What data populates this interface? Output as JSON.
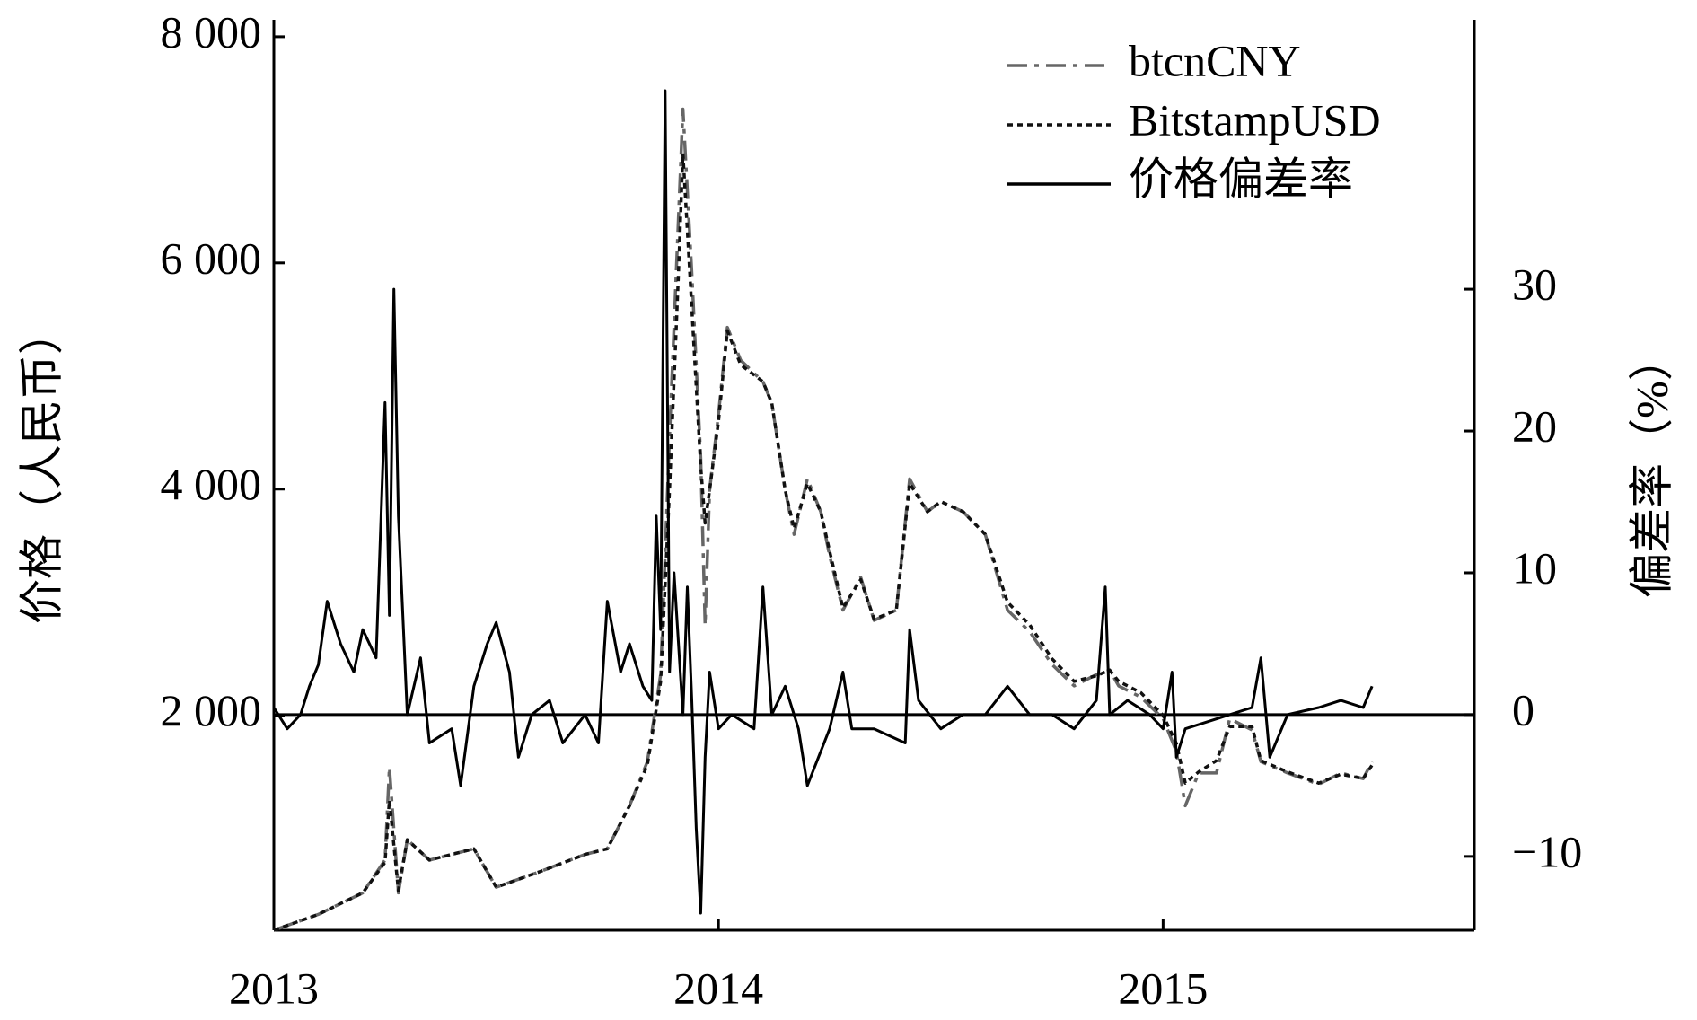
{
  "chart_data": {
    "type": "line",
    "xlabel": null,
    "ylabel": "价格（人民币）",
    "y2label": "偏差率（%）",
    "xlim": [
      2013,
      2015.7
    ],
    "xticks": [
      2013,
      2014,
      2015
    ],
    "ylim": [
      100,
      8150
    ],
    "yticks": [
      {
        "value": 2000,
        "label": "2 000"
      },
      {
        "value": 4000,
        "label": "4 000"
      },
      {
        "value": 6000,
        "label": "6 000"
      },
      {
        "value": 8000,
        "label": "8 000"
      }
    ],
    "y2lim": [
      -15.2,
      49
    ],
    "y2ticks": [
      {
        "value": -10,
        "label": "−10"
      },
      0,
      10,
      20,
      30
    ],
    "legend": "upper right",
    "series": [
      {
        "name": "btcnCNY",
        "color": "#666666",
        "style": "dashdot",
        "axis": "y",
        "x": [
          2013.0,
          2013.1,
          2013.2,
          2013.25,
          2013.26,
          2013.28,
          2013.3,
          2013.35,
          2013.45,
          2013.5,
          2013.6,
          2013.7,
          2013.75,
          2013.8,
          2013.84,
          2013.87,
          2013.89,
          2013.91,
          2013.92,
          2013.94,
          2013.96,
          2013.97,
          2013.98,
          2014.0,
          2014.02,
          2014.05,
          2014.1,
          2014.12,
          2014.15,
          2014.17,
          2014.2,
          2014.23,
          2014.25,
          2014.28,
          2014.32,
          2014.35,
          2014.4,
          2014.43,
          2014.47,
          2014.5,
          2014.55,
          2014.6,
          2014.65,
          2014.7,
          2014.75,
          2014.8,
          2014.85,
          2014.88,
          2014.9,
          2014.95,
          2015.0,
          2015.03,
          2015.05,
          2015.08,
          2015.12,
          2015.15,
          2015.2,
          2015.22,
          2015.28,
          2015.35,
          2015.4,
          2015.45,
          2015.47
        ],
        "values": [
          100,
          240,
          430,
          720,
          1540,
          430,
          900,
          720,
          820,
          480,
          620,
          770,
          820,
          1200,
          1590,
          2360,
          4470,
          6390,
          7360,
          5910,
          4280,
          2800,
          3990,
          4660,
          5430,
          5140,
          4950,
          4760,
          3990,
          3600,
          4090,
          3800,
          3410,
          2930,
          3220,
          2840,
          2930,
          4090,
          3800,
          3890,
          3800,
          3600,
          2930,
          2740,
          2450,
          2260,
          2360,
          2400,
          2260,
          2160,
          1970,
          1680,
          1200,
          1490,
          1490,
          1970,
          1870,
          1590,
          1490,
          1390,
          1490,
          1440,
          1590
        ]
      },
      {
        "name": "BitstampUSD",
        "color": "#111111",
        "style": "dotted",
        "axis": "y",
        "x": [
          2013.0,
          2013.1,
          2013.2,
          2013.25,
          2013.26,
          2013.28,
          2013.3,
          2013.35,
          2013.45,
          2013.5,
          2013.6,
          2013.7,
          2013.75,
          2013.8,
          2013.84,
          2013.87,
          2013.89,
          2013.91,
          2013.92,
          2013.94,
          2013.96,
          2013.97,
          2013.98,
          2014.0,
          2014.02,
          2014.05,
          2014.1,
          2014.12,
          2014.15,
          2014.17,
          2014.2,
          2014.23,
          2014.25,
          2014.28,
          2014.32,
          2014.35,
          2014.4,
          2014.43,
          2014.47,
          2014.5,
          2014.55,
          2014.6,
          2014.65,
          2014.7,
          2014.75,
          2014.8,
          2014.85,
          2014.88,
          2014.9,
          2014.95,
          2015.0,
          2015.03,
          2015.05,
          2015.08,
          2015.12,
          2015.15,
          2015.2,
          2015.22,
          2015.28,
          2015.35,
          2015.4,
          2015.45,
          2015.47
        ],
        "values": [
          100,
          240,
          430,
          700,
          1250,
          450,
          900,
          720,
          820,
          480,
          620,
          770,
          820,
          1200,
          1560,
          2300,
          4000,
          5900,
          6970,
          5600,
          4200,
          3700,
          3990,
          4600,
          5400,
          5100,
          4950,
          4760,
          3990,
          3650,
          4050,
          3800,
          3450,
          2950,
          3200,
          2850,
          2930,
          4050,
          3800,
          3890,
          3800,
          3600,
          3000,
          2800,
          2500,
          2300,
          2350,
          2400,
          2300,
          2200,
          2000,
          1750,
          1400,
          1500,
          1600,
          1900,
          1900,
          1600,
          1500,
          1400,
          1480,
          1440,
          1560
        ]
      },
      {
        "name": "价格偏差率",
        "color": "#000000",
        "style": "solid",
        "axis": "y2",
        "x": [
          2013.0,
          2013.03,
          2013.06,
          2013.08,
          2013.1,
          2013.12,
          2013.15,
          2013.18,
          2013.2,
          2013.23,
          2013.25,
          2013.26,
          2013.27,
          2013.28,
          2013.3,
          2013.33,
          2013.35,
          2013.4,
          2013.42,
          2013.45,
          2013.48,
          2013.5,
          2013.53,
          2013.55,
          2013.58,
          2013.62,
          2013.65,
          2013.7,
          2013.73,
          2013.75,
          2013.78,
          2013.8,
          2013.83,
          2013.85,
          2013.86,
          2013.87,
          2013.88,
          2013.89,
          2013.9,
          2013.92,
          2013.93,
          2013.94,
          2013.95,
          2013.96,
          2013.97,
          2013.98,
          2014.0,
          2014.03,
          2014.08,
          2014.1,
          2014.12,
          2014.15,
          2014.18,
          2014.2,
          2014.25,
          2014.28,
          2014.3,
          2014.35,
          2014.42,
          2014.43,
          2014.45,
          2014.5,
          2014.55,
          2014.6,
          2014.65,
          2014.7,
          2014.75,
          2014.8,
          2014.85,
          2014.87,
          2014.88,
          2014.92,
          2014.97,
          2015.0,
          2015.02,
          2015.03,
          2015.05,
          2015.1,
          2015.15,
          2015.2,
          2015.22,
          2015.24,
          2015.28,
          2015.35,
          2015.4,
          2015.45,
          2015.47
        ],
        "values": [
          0.5,
          -1,
          0,
          2,
          3.5,
          8,
          5,
          3,
          6,
          4,
          22,
          7,
          30,
          14,
          0,
          4,
          -2,
          -1,
          -5,
          2,
          5,
          6.5,
          3,
          -3,
          0,
          1,
          -2,
          0,
          -2,
          8,
          3,
          5,
          2,
          1,
          14,
          6,
          44,
          3,
          10,
          0,
          9,
          1,
          -8,
          -14,
          -3,
          3,
          -1,
          0,
          -1,
          9,
          0,
          2,
          -1,
          -5,
          -1,
          3,
          -1,
          -1,
          -2,
          6,
          1,
          -1,
          0,
          0,
          2,
          0,
          0,
          -1,
          1,
          9,
          0,
          1,
          0,
          -1,
          3,
          -3,
          -1,
          -0.5,
          0,
          0.5,
          4,
          -3,
          0,
          0.5,
          1,
          0.5,
          2
        ]
      }
    ]
  }
}
